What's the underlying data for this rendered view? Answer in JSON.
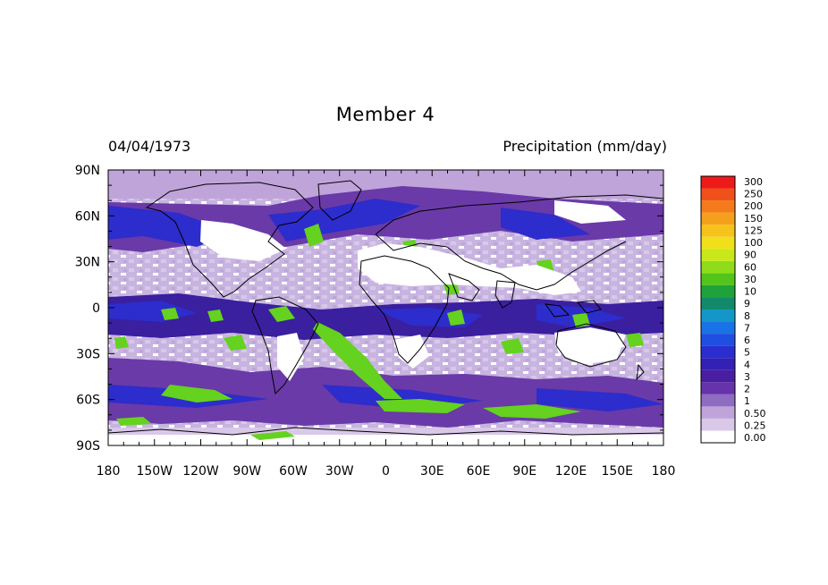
{
  "title": "Member 4",
  "date": "04/04/1973",
  "variable": "Precipitation (mm/day)",
  "lon_ticks": [
    "180",
    "150W",
    "120W",
    "90W",
    "60W",
    "30W",
    "0",
    "30E",
    "60E",
    "90E",
    "120E",
    "150E",
    "180"
  ],
  "lat_ticks": [
    "90N",
    "60N",
    "30N",
    "0",
    "30S",
    "60S",
    "90S"
  ],
  "colorbar": {
    "levels": [
      "0.00",
      "0.25",
      "0.50",
      "1",
      "2",
      "3",
      "4",
      "5",
      "6",
      "7",
      "8",
      "9",
      "10",
      "30",
      "60",
      "90",
      "100",
      "125",
      "150",
      "200",
      "250",
      "300"
    ],
    "colors": [
      "#ffffff",
      "#d9c8e8",
      "#bfa4da",
      "#8d6cc1",
      "#6633aa",
      "#4a1ea0",
      "#3320b5",
      "#2a2ed0",
      "#1f4fe0",
      "#1a73e6",
      "#1497c8",
      "#128a6a",
      "#1fa23a",
      "#52c41a",
      "#8fdd1a",
      "#c8e81a",
      "#f0e01a",
      "#f5c31a",
      "#f5a01a",
      "#f57a1a",
      "#f0501a",
      "#ee1a1a"
    ]
  },
  "colors": {
    "ocean_base": "#c7b4e0",
    "land_dry": "#ffffff",
    "heavy_band": "#6a3aa8",
    "deep_blue": "#2d2ccc",
    "green": "#64d21e",
    "coast": "#000000"
  }
}
